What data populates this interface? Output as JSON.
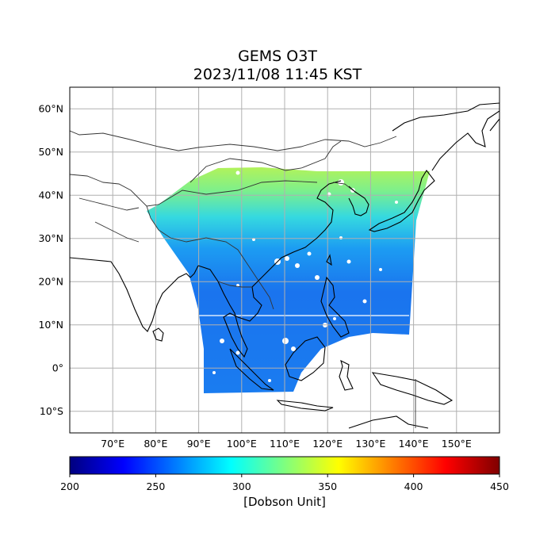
{
  "title": "GEMS O3T",
  "subtitle": "2023/11/08 11:45 KST",
  "map": {
    "lon_range": [
      60,
      160
    ],
    "lat_range": [
      -15,
      65
    ],
    "lon_ticks": [
      {
        "value": 70,
        "label": "70°E"
      },
      {
        "value": 80,
        "label": "80°E"
      },
      {
        "value": 90,
        "label": "90°E"
      },
      {
        "value": 100,
        "label": "100°E"
      },
      {
        "value": 110,
        "label": "110°E"
      },
      {
        "value": 120,
        "label": "120°E"
      },
      {
        "value": 130,
        "label": "130°E"
      },
      {
        "value": 140,
        "label": "140°E"
      },
      {
        "value": 150,
        "label": "150°E"
      }
    ],
    "lat_ticks": [
      {
        "value": 60,
        "label": "60°N"
      },
      {
        "value": 50,
        "label": "50°N"
      },
      {
        "value": 40,
        "label": "40°N"
      },
      {
        "value": 30,
        "label": "30°N"
      },
      {
        "value": 20,
        "label": "20°N"
      },
      {
        "value": 10,
        "label": "10°N"
      },
      {
        "value": 0,
        "label": "0°"
      },
      {
        "value": -10,
        "label": "10°S"
      }
    ],
    "grid": true,
    "colormap": "jet"
  },
  "colorbar": {
    "min": 200,
    "max": 450,
    "ticks": [
      {
        "value": 200,
        "label": "200"
      },
      {
        "value": 250,
        "label": "250"
      },
      {
        "value": 300,
        "label": "300"
      },
      {
        "value": 350,
        "label": "350"
      },
      {
        "value": 400,
        "label": "400"
      },
      {
        "value": 450,
        "label": "450"
      }
    ],
    "unit": "[Dobson Unit]",
    "colors": [
      "#00007f",
      "#0000ff",
      "#007fff",
      "#00ffff",
      "#7fff7f",
      "#ffff00",
      "#ff7f00",
      "#ff0000",
      "#7f0000"
    ]
  }
}
